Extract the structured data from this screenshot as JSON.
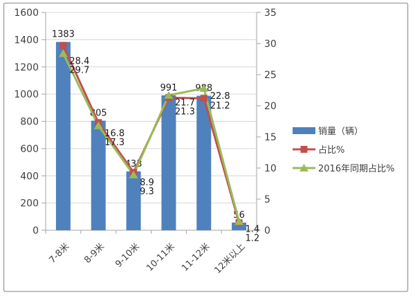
{
  "chart_data": {
    "type": "bar",
    "subtype": "combo-bar-line",
    "title": "",
    "categories": [
      "7-8米",
      "8-9米",
      "9-10米",
      "10-11米",
      "11-12米",
      "12米以上"
    ],
    "series": [
      {
        "name": "销量（辆）",
        "kind": "bar",
        "axis": "left",
        "color": "#4f81bd",
        "values": [
          1383,
          805,
          433,
          991,
          988,
          56
        ]
      },
      {
        "name": "占比%",
        "kind": "line",
        "marker": "square",
        "axis": "right",
        "color": "#c0504d",
        "values": [
          29.7,
          17.3,
          9.3,
          21.3,
          21.2,
          1.2
        ]
      },
      {
        "name": "2016年同期占比%",
        "kind": "line",
        "marker": "triangle",
        "axis": "right",
        "color": "#9bbb59",
        "values": [
          28.4,
          16.8,
          8.9,
          21.7,
          22.8,
          1.4
        ]
      }
    ],
    "left_axis": {
      "min": 0,
      "max": 1600,
      "step": 200,
      "tick_labels": [
        "0",
        "200",
        "400",
        "600",
        "800",
        "1000",
        "1200",
        "1400",
        "1600"
      ]
    },
    "right_axis": {
      "min": 0,
      "max": 35,
      "step": 5,
      "tick_labels": [
        "0",
        "5",
        "10",
        "15",
        "20",
        "25",
        "30",
        "35"
      ]
    },
    "grid": true,
    "legend_position": "right",
    "legend": [
      {
        "label": "销量（辆）",
        "swatch": "bar",
        "color": "#4f81bd"
      },
      {
        "label": "占比%",
        "swatch": "line-square",
        "color": "#c0504d"
      },
      {
        "label": "2016年同期占比%",
        "swatch": "line-triangle",
        "color": "#9bbb59"
      }
    ],
    "colors": {
      "grid": "#d6d6d6",
      "axis": "#a3a3a3",
      "axis_text": "#3f3f3f",
      "data_label_text": "#1a1a1a",
      "frame_border": "#a8a8a8",
      "background": "#ffffff"
    }
  }
}
